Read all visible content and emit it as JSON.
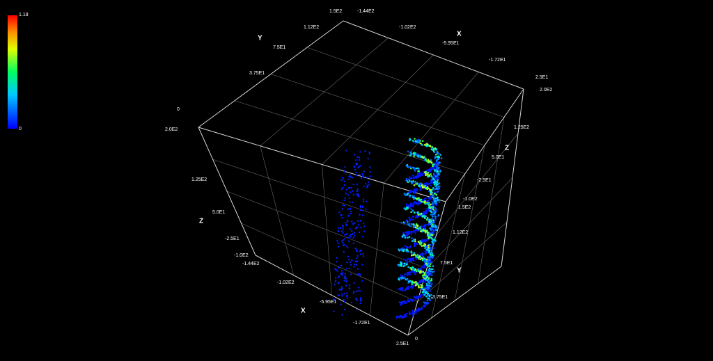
{
  "colorbar": {
    "max": "1.18",
    "min": "0"
  },
  "labels": [
    "1.5E2",
    "-1.44E2",
    "1.12E2",
    "-1.02E2",
    "Y",
    "X",
    "7.5E1",
    "-5.95E1",
    "3.75E1",
    "-1.72E1",
    "0",
    "2.0E2",
    "2.5E1",
    "2.0E2",
    "1.25E2",
    "Z",
    "5.0E1",
    "-2.5E1",
    "-1.0E2",
    "1.5E2",
    "1.12E2",
    "7.5E1",
    "Y",
    "3.75E1",
    "0",
    "2.5E1",
    "-1.72E1",
    "X",
    "-5.95E1",
    "-1.02E2",
    "-1.44E2",
    "-1.0E2",
    "-2.5E1",
    "Z",
    "5.0E1",
    "1.25E2"
  ]
}
